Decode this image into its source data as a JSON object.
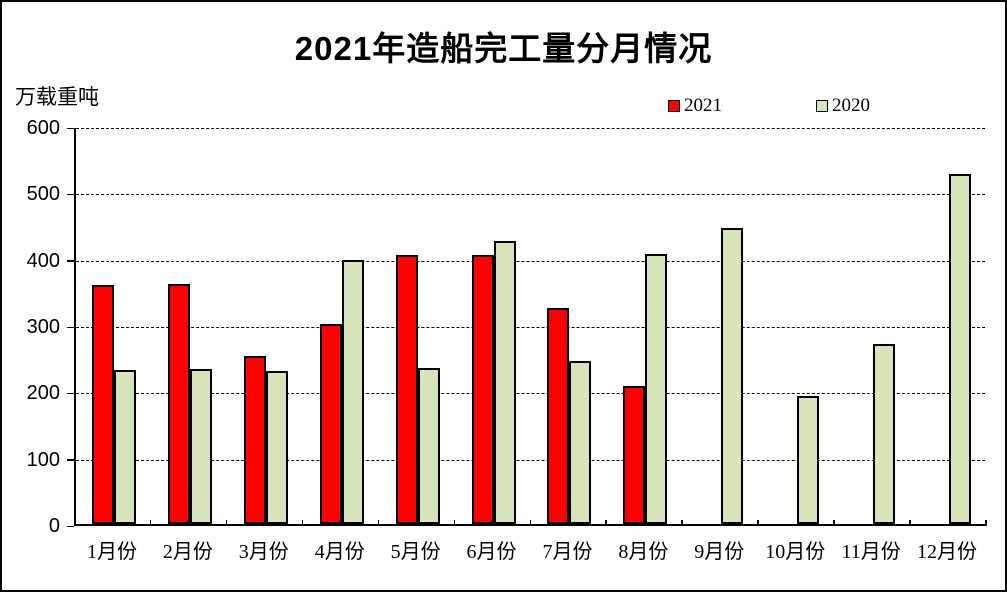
{
  "title": "2021年造船完工量分月情况",
  "y_unit_label": "万载重吨",
  "legend": [
    {
      "label": "2021",
      "color": "#ff0000"
    },
    {
      "label": "2020",
      "color": "#d8e4bc"
    }
  ],
  "colors": {
    "series_2021": "#ff0000",
    "series_2020": "#d8e4bc",
    "bar_border": "#000000",
    "background": "#ffffff"
  },
  "chart_data": {
    "type": "bar",
    "title": "2021年造船完工量分月情况",
    "xlabel": "",
    "ylabel": "万载重吨",
    "categories": [
      "1月份",
      "2月份",
      "3月份",
      "4月份",
      "5月份",
      "6月份",
      "7月份",
      "8月份",
      "9月份",
      "10月份",
      "11月份",
      "12月份"
    ],
    "series": [
      {
        "name": "2021",
        "color": "#ff0000",
        "values": [
          360,
          362,
          254,
          302,
          405,
          405,
          325,
          208,
          null,
          null,
          null,
          null
        ]
      },
      {
        "name": "2020",
        "color": "#d8e4bc",
        "values": [
          232,
          233,
          231,
          398,
          235,
          426,
          245,
          407,
          446,
          193,
          272,
          528
        ]
      }
    ],
    "ylim": [
      0,
      600
    ],
    "ytick_interval": 100,
    "y_tick_labels": [
      "0",
      "100",
      "200",
      "300",
      "400",
      "500",
      "600"
    ],
    "grid": "horizontal-dashed",
    "legend_position": "top-right"
  }
}
